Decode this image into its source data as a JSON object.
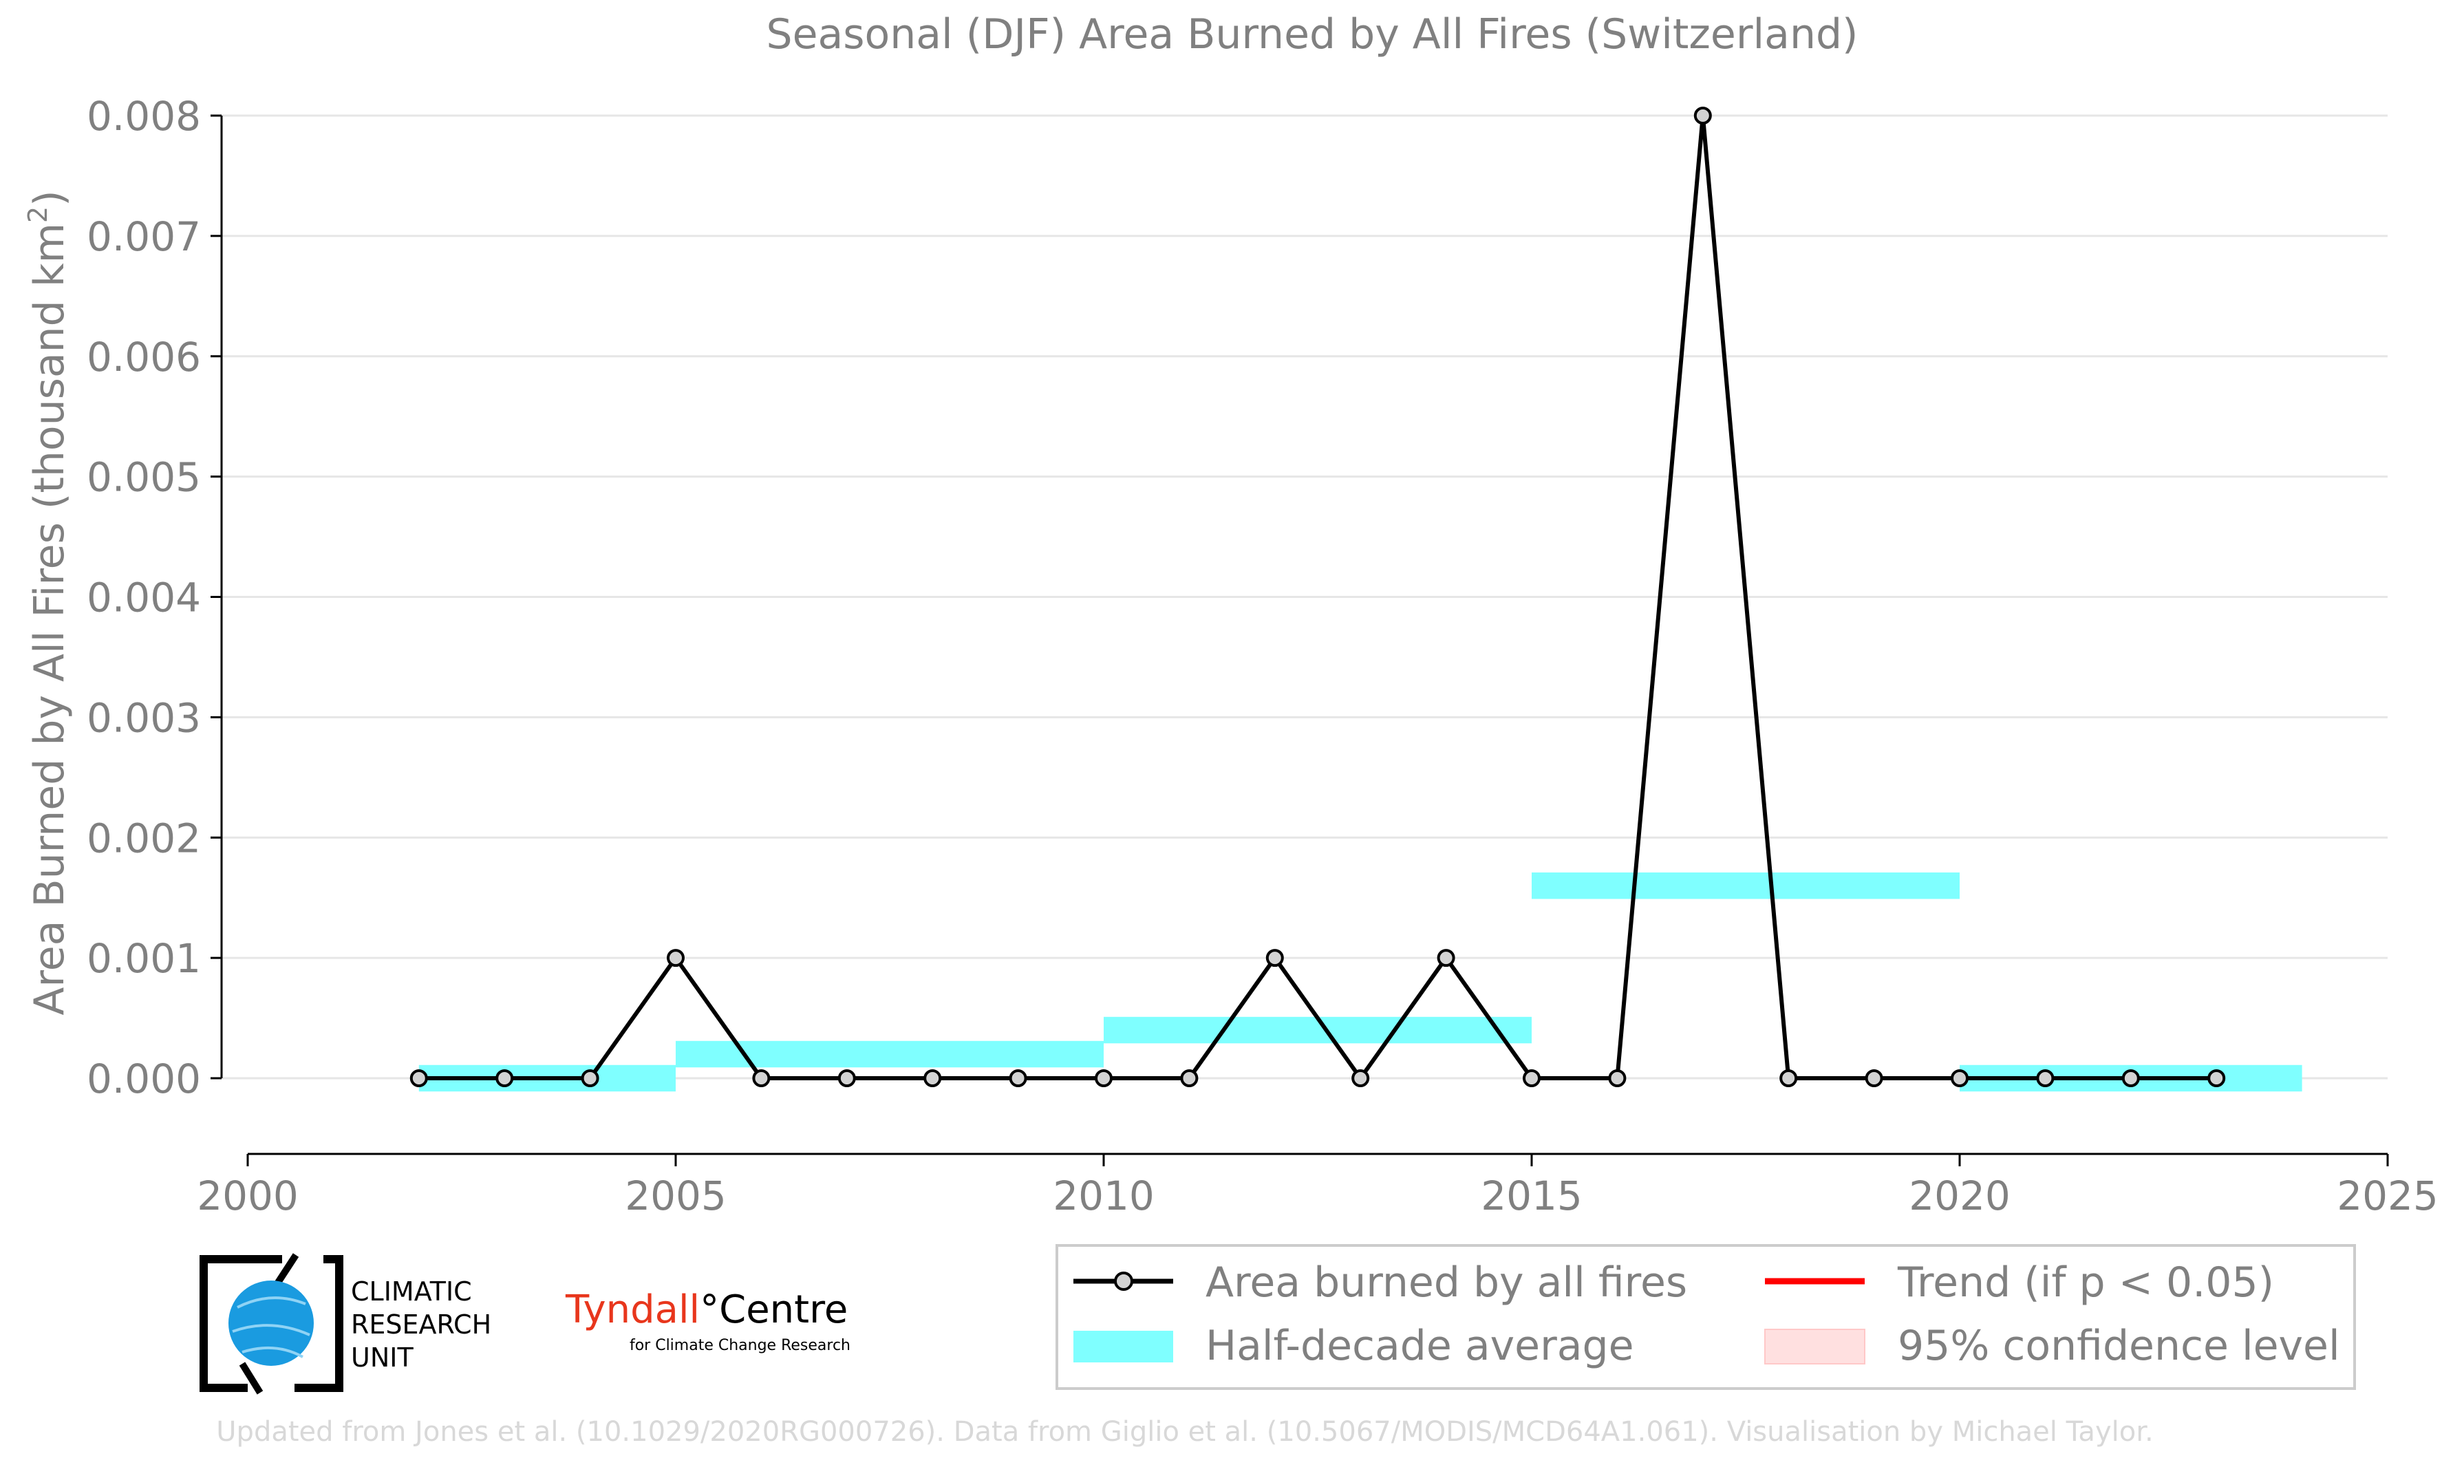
{
  "chart_data": {
    "type": "line",
    "title": "Seasonal (DJF) Area Burned by All Fires (Switzerland)",
    "xlabel": "",
    "ylabel": "Area Burned by All Fires (thousand km",
    "ylabel_sup": "2",
    "ylabel_close": ")",
    "xlim": [
      2000,
      2025
    ],
    "ylim": [
      -0.0006,
      0.008
    ],
    "x_ticks": [
      "2000",
      "2005",
      "2010",
      "2015",
      "2020",
      "2025"
    ],
    "y_ticks": [
      "0.000",
      "0.001",
      "0.002",
      "0.003",
      "0.004",
      "0.005",
      "0.006",
      "0.007",
      "0.008"
    ],
    "grid": "horizontal",
    "series": [
      {
        "name": "Area burned by all fires",
        "color": "#000000",
        "marker_fill": "#d3d3d3",
        "x": [
          2002,
          2003,
          2004,
          2005,
          2006,
          2007,
          2008,
          2009,
          2010,
          2011,
          2012,
          2013,
          2014,
          2015,
          2016,
          2017,
          2018,
          2019,
          2020,
          2021,
          2022,
          2023
        ],
        "y": [
          0,
          0,
          0,
          0.001,
          0,
          0,
          0,
          0,
          0,
          0,
          0.001,
          0,
          0.001,
          0,
          0,
          0.008,
          0,
          0,
          0,
          0,
          0,
          0
        ]
      }
    ],
    "half_decade_average": {
      "name": "Half-decade average",
      "color": "#7fffff",
      "segments": [
        {
          "x0": 2002,
          "x1": 2005,
          "value": 0.0
        },
        {
          "x0": 2005,
          "x1": 2010,
          "value": 0.0002
        },
        {
          "x0": 2010,
          "x1": 2015,
          "value": 0.0004
        },
        {
          "x0": 2015,
          "x1": 2020,
          "value": 0.0016
        },
        {
          "x0": 2020,
          "x1": 2024,
          "value": 0.0
        }
      ]
    },
    "legend": {
      "placement": "bottom-right",
      "entries": [
        {
          "label": "Area burned by all fires",
          "kind": "line-marker",
          "color": "#000000"
        },
        {
          "label": "Trend (if p < 0.05)",
          "kind": "line",
          "color": "#ff0000"
        },
        {
          "label": "Half-decade average",
          "kind": "band",
          "color": "#7fffff"
        },
        {
          "label": "95% confidence level",
          "kind": "patch",
          "color": "#ffe0e0"
        }
      ]
    }
  },
  "logos": {
    "cru": [
      "CLIMATIC",
      "RESEARCH",
      "UNIT"
    ],
    "tyndall_main": "Tyndall",
    "tyndall_degree": "°",
    "tyndall_centre": "Centre",
    "tyndall_sub": "for Climate Change Research"
  },
  "footer": {
    "credit": "Updated from Jones et al. (10.1029/2020RG000726). Data from Giglio et al. (10.5067/MODIS/MCD64A1.061). Visualisation by Michael Taylor."
  },
  "colors": {
    "text_gray": "#808080",
    "grid": "#e6e6e6",
    "footer_gray": "#d8d8d8",
    "tyndall_red": "#e8361c",
    "cru_blue": "#1a9be0"
  }
}
